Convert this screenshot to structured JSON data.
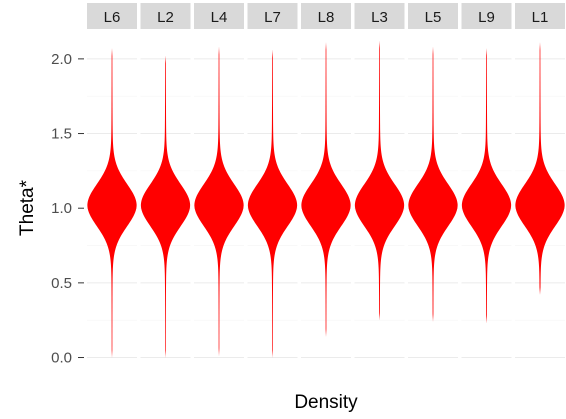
{
  "chart_data": {
    "type": "violin",
    "xlabel": "Density",
    "ylabel": "Theta*",
    "ylim": [
      -0.03,
      2.18
    ],
    "y_ticks": [
      {
        "value": 0.0,
        "label": "0.0"
      },
      {
        "value": 0.5,
        "label": "0.5"
      },
      {
        "value": 1.0,
        "label": "1.0"
      },
      {
        "value": 1.5,
        "label": "1.5"
      },
      {
        "value": 2.0,
        "label": "2.0"
      }
    ],
    "grid": true,
    "fill_color": "#ff0000",
    "panels": [
      {
        "label": "L6",
        "min": 0.0,
        "max": 2.07
      },
      {
        "label": "L2",
        "min": 0.0,
        "max": 2.02
      },
      {
        "label": "L4",
        "min": 0.01,
        "max": 2.08
      },
      {
        "label": "L7",
        "min": 0.0,
        "max": 2.06
      },
      {
        "label": "L8",
        "min": 0.14,
        "max": 2.11
      },
      {
        "label": "L3",
        "min": 0.25,
        "max": 2.12
      },
      {
        "label": "L5",
        "min": 0.24,
        "max": 2.08
      },
      {
        "label": "L9",
        "min": 0.23,
        "max": 2.07
      },
      {
        "label": "L1",
        "min": 0.42,
        "max": 2.11
      }
    ]
  }
}
